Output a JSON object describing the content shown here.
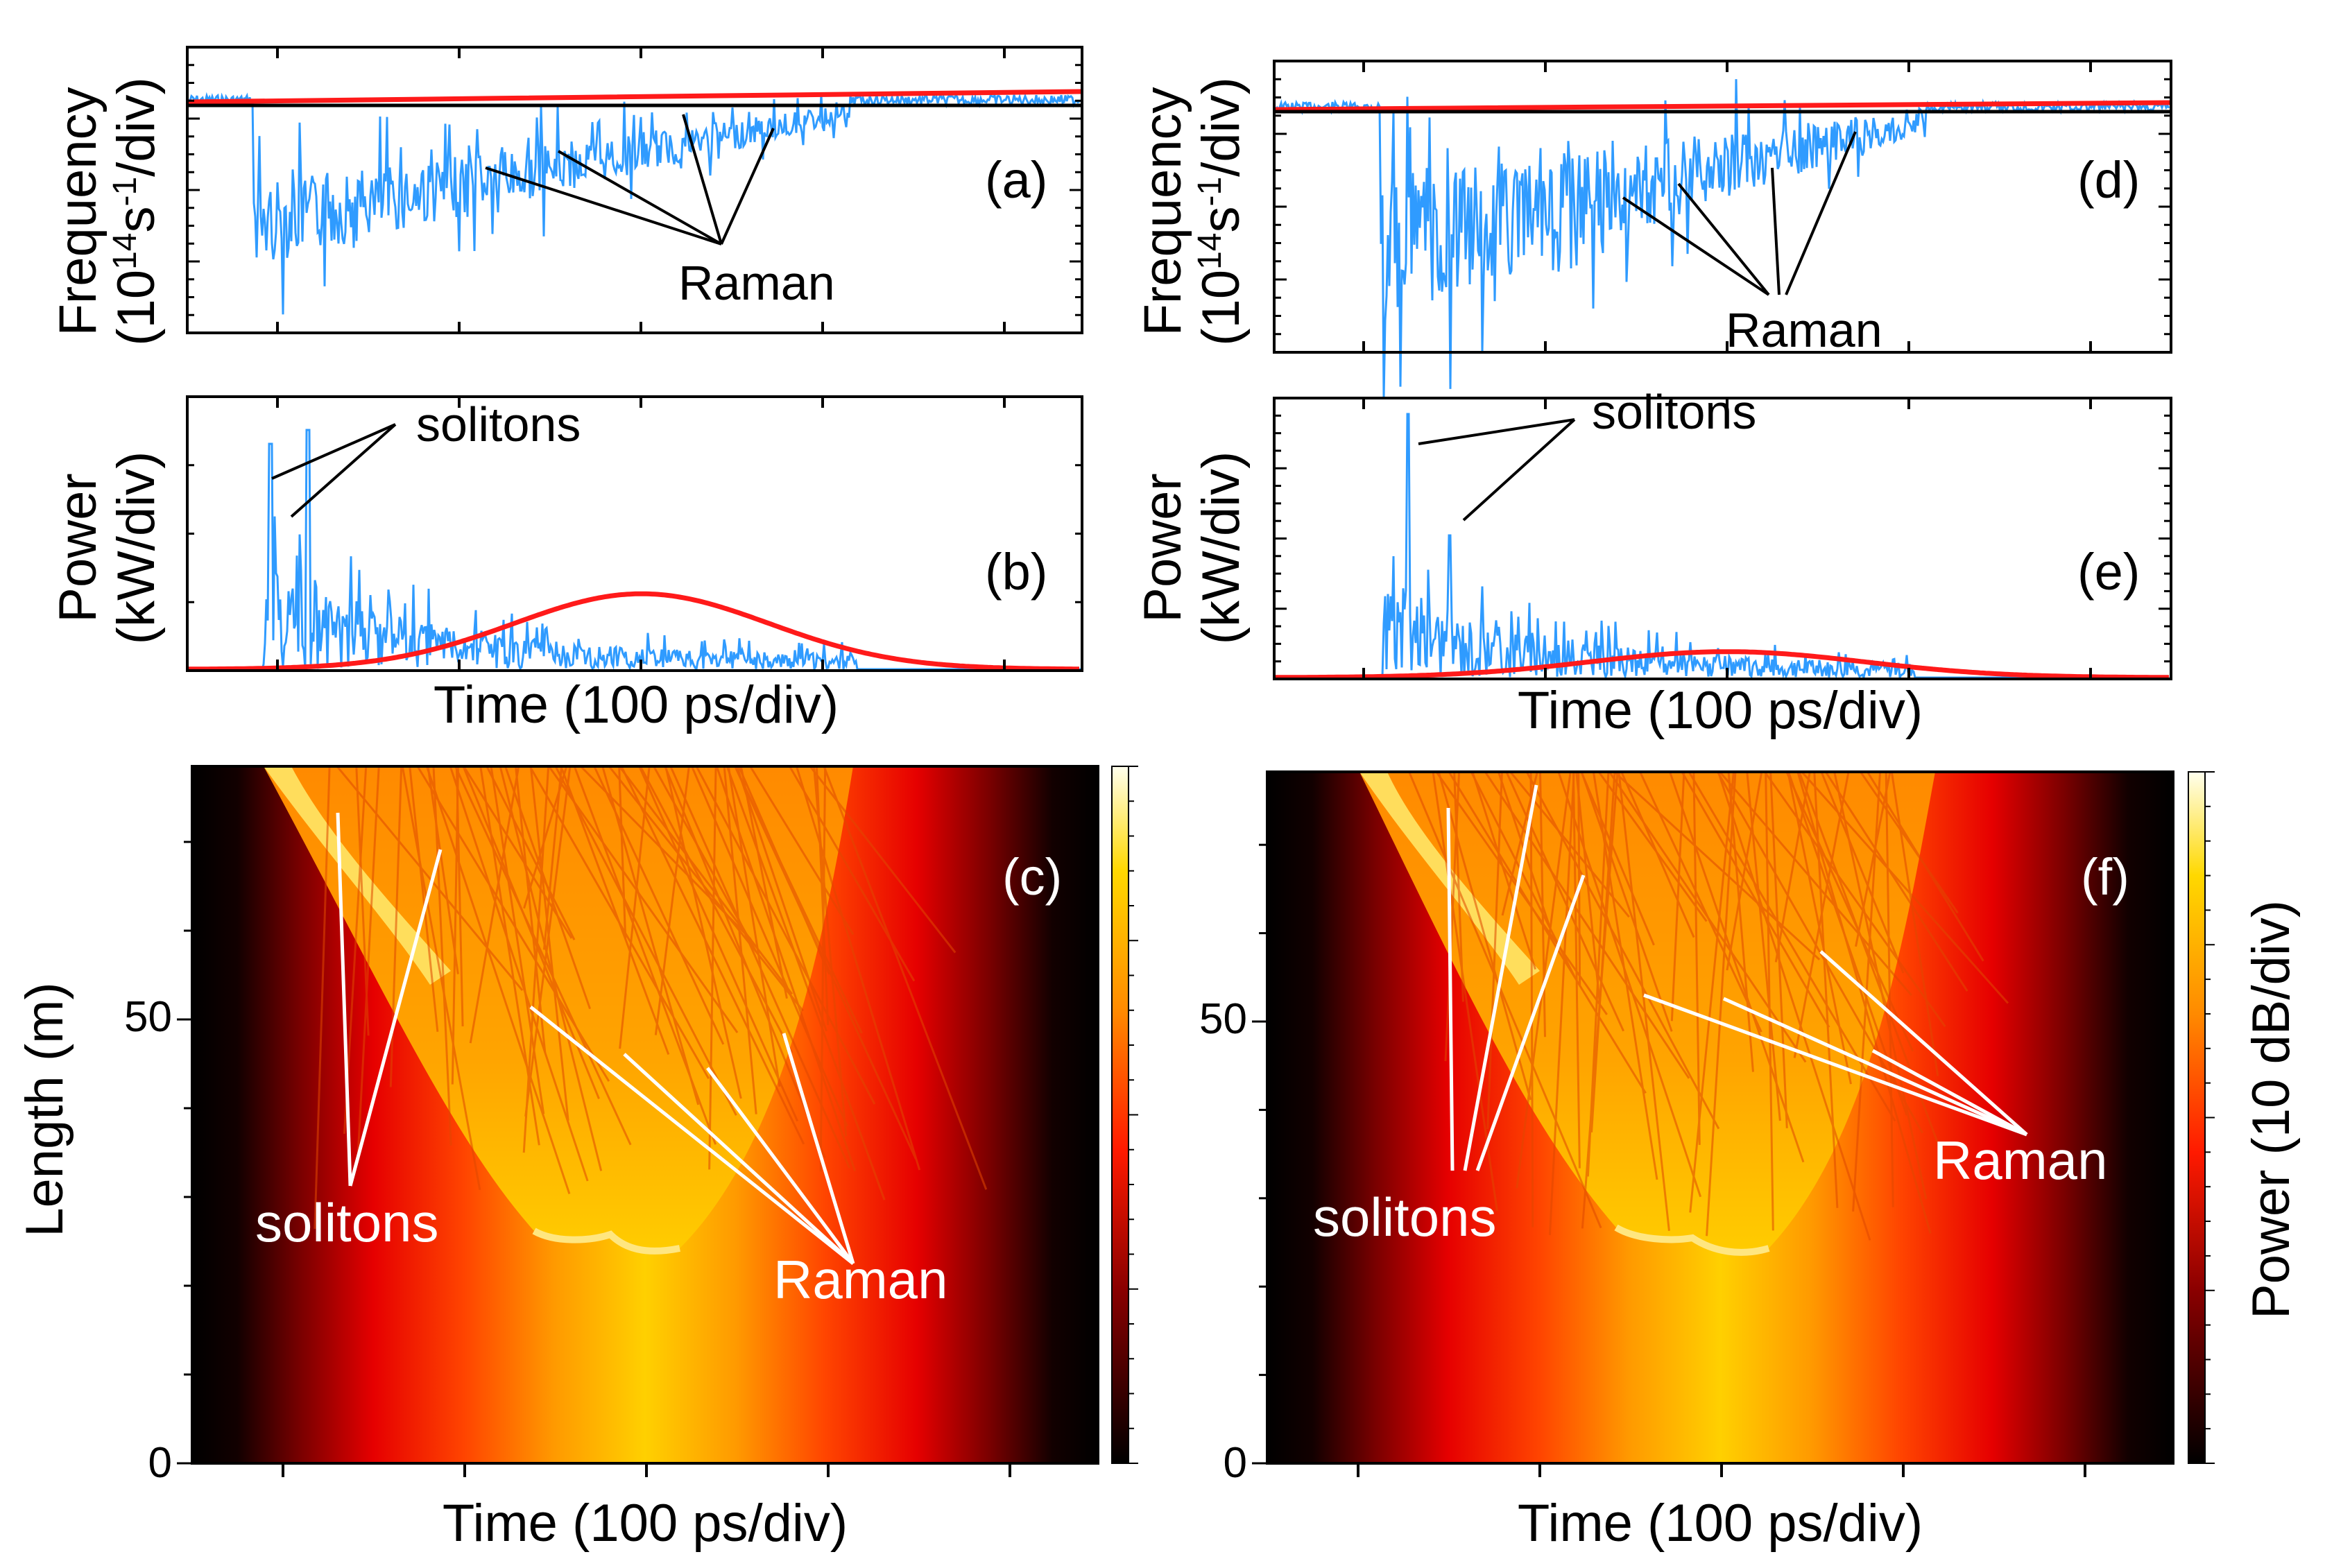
{
  "colors": {
    "signal": "#2f9bff",
    "envelope": "#ff1a1a",
    "axis": "#000000",
    "annotation_on_map": "#ffffff"
  },
  "chart_data": [
    {
      "id": "a",
      "type": "line",
      "panel_tag": "(a)",
      "ylabel_line1": "Frequency",
      "ylabel_line2_pre": "(10",
      "ylabel_sup1": "14",
      "ylabel_mid": "s",
      "ylabel_sup2": "-1",
      "ylabel_post": "/div)",
      "xlabel": "",
      "annotation": "Raman",
      "series": [
        {
          "values_desc": "blue signal: flat near zero outside pulse; large negative excursions with noise inside pulse, Raman steps rising toward zero"
        },
        {
          "values_desc": "red: nearly flat reference at zero"
        }
      ]
    },
    {
      "id": "b",
      "type": "line",
      "panel_tag": "(b)",
      "ylabel_line1": "Power",
      "ylabel_line2": "(kW/div)",
      "xlabel": "Time (100 ps/div)",
      "annotation": "solitons",
      "envelope_peak_div": 0.62
    },
    {
      "id": "c",
      "type": "heatmap",
      "panel_tag": "(c)",
      "ylabel": "Length (m)",
      "xlabel": "Time (100 ps/div)",
      "yticks": [
        "0",
        "50"
      ],
      "ylim": [
        0,
        79
      ],
      "annotations": [
        "solitons",
        "Raman"
      ]
    },
    {
      "id": "d",
      "type": "line",
      "panel_tag": "(d)",
      "ylabel_line1": "Frequency",
      "ylabel_line2_pre": "(10",
      "ylabel_sup1": "14",
      "ylabel_mid": "s",
      "ylabel_sup2": "-1",
      "ylabel_post": "/div)",
      "xlabel": "",
      "annotation": "Raman"
    },
    {
      "id": "e",
      "type": "line",
      "panel_tag": "(e)",
      "ylabel_line1": "Power",
      "ylabel_line2": "(kW/div)",
      "xlabel": "Time (100 ps/div)",
      "annotation": "solitons",
      "envelope_peak_div": 0.2
    },
    {
      "id": "f",
      "type": "heatmap",
      "panel_tag": "(f)",
      "ylabel": "",
      "xlabel": "Time (100 ps/div)",
      "yticks": [
        "0",
        "50"
      ],
      "ylim": [
        0,
        79
      ],
      "annotations": [
        "solitons",
        "Raman"
      ],
      "colorbar_label": "Power (10 dB/div)"
    }
  ]
}
